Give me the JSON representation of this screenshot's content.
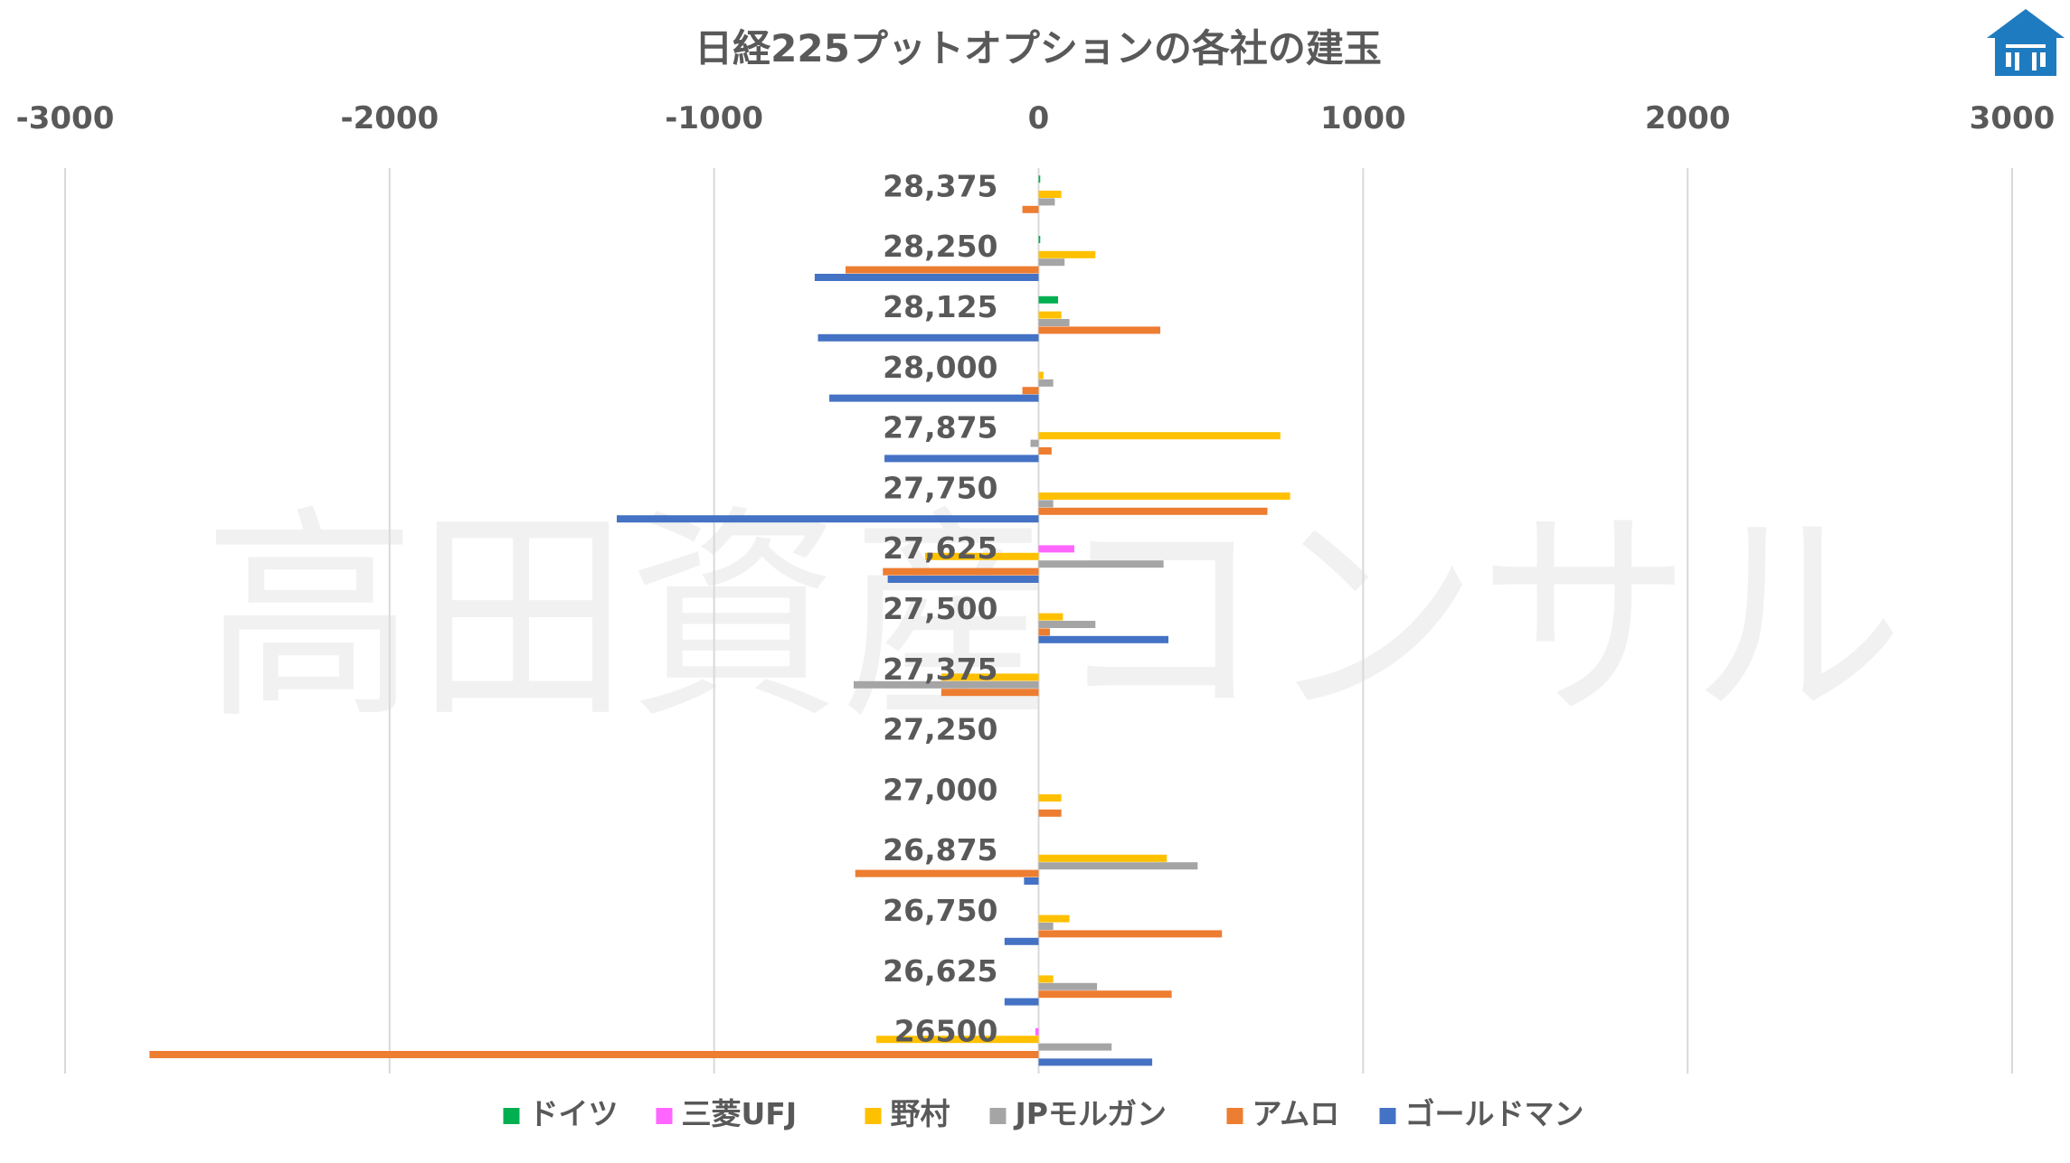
{
  "watermark_text": "高田資産コンサル",
  "logo": {
    "icon": "house-logo-icon",
    "color": "#1f7bbf"
  },
  "chart_data": {
    "type": "bar",
    "orientation": "horizontal",
    "title": "日経225プットオプションの各社の建玉",
    "xlim": [
      -3000,
      3000
    ],
    "xticks": [
      -3000,
      -2000,
      -1000,
      0,
      1000,
      2000,
      3000
    ],
    "grid": true,
    "legend_position": "bottom",
    "categories": [
      "28,375",
      "28,250",
      "28,125",
      "28,000",
      "27,875",
      "27,750",
      "27,625",
      "27,500",
      "27,375",
      "27,250",
      "27,000",
      "26,875",
      "26,750",
      "26,625",
      "26500"
    ],
    "series": [
      {
        "name": "ドイツ",
        "color": "#00b050",
        "values": [
          5,
          5,
          60,
          0,
          0,
          0,
          0,
          0,
          0,
          0,
          0,
          0,
          0,
          0,
          0
        ]
      },
      {
        "name": "三菱UFJ",
        "color": "#ff66ff",
        "values": [
          0,
          0,
          0,
          0,
          0,
          0,
          110,
          0,
          0,
          0,
          0,
          0,
          0,
          0,
          -10
        ]
      },
      {
        "name": "野村",
        "color": "#ffc000",
        "values": [
          70,
          175,
          70,
          15,
          745,
          775,
          -350,
          75,
          -300,
          0,
          70,
          395,
          95,
          45,
          -500
        ]
      },
      {
        "name": "JPモルガン",
        "color": "#a5a5a5",
        "values": [
          50,
          80,
          95,
          45,
          -25,
          45,
          385,
          175,
          -570,
          0,
          0,
          490,
          45,
          180,
          225
        ]
      },
      {
        "name": "アムロ",
        "color": "#ed7d31",
        "values": [
          -50,
          -595,
          375,
          -50,
          40,
          705,
          -480,
          35,
          -300,
          0,
          70,
          -565,
          565,
          410,
          -2740
        ]
      },
      {
        "name": "ゴールドマン",
        "color": "#4472c4",
        "values": [
          0,
          -690,
          -680,
          -645,
          -475,
          -1300,
          -465,
          400,
          0,
          0,
          0,
          -45,
          -105,
          -105,
          350
        ]
      }
    ]
  }
}
